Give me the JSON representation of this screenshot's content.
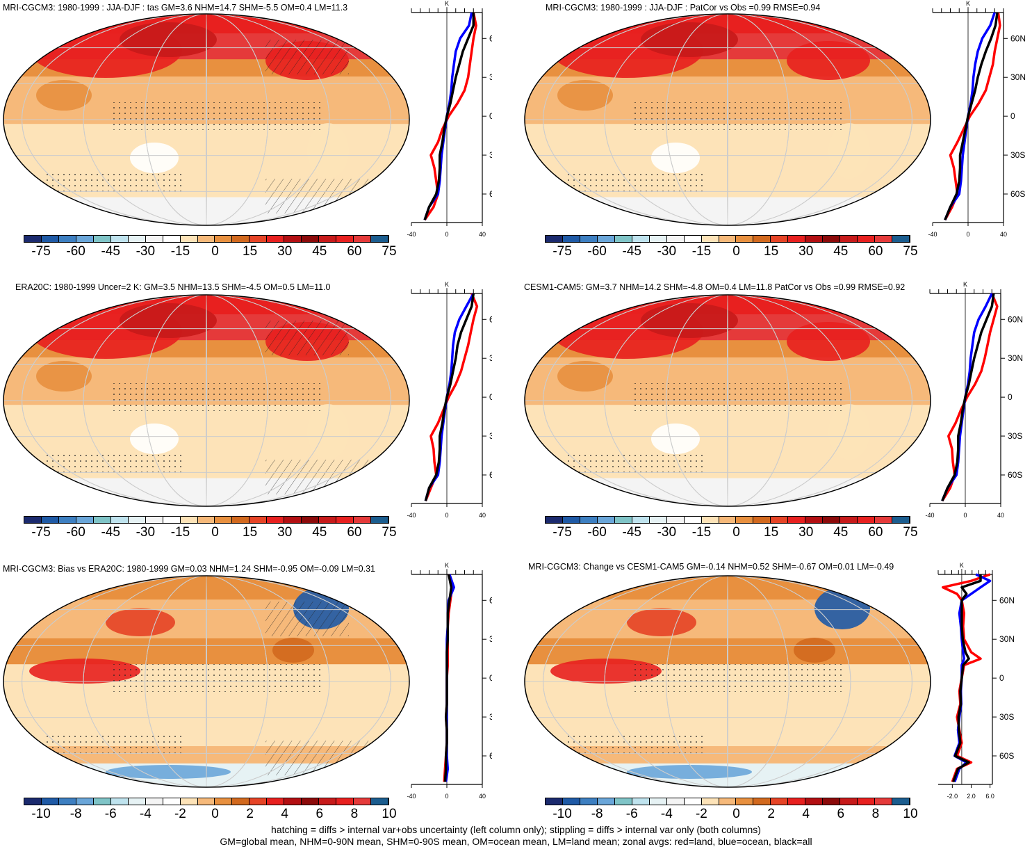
{
  "panels": [
    {
      "title": "MRI-CGCM3: 1980-1999 : JJA-DJF : tas GM=3.6 NHM=14.7 SHM=-5.5 OM=0.4 LM=11.3",
      "kind": "abs",
      "hatch": true,
      "cbar": "abs"
    },
    {
      "title": "MRI-CGCM3: 1980-1999 : JJA-DJF : PatCor vs Obs =0.99 RMSE=0.94",
      "kind": "abs",
      "hatch": false,
      "cbar": "abs"
    },
    {
      "title": "ERA20C: 1980-1999 Uncer=2 K: GM=3.5 NHM=13.5 SHM=-4.5 OM=0.5 LM=11.0",
      "kind": "abs",
      "hatch": true,
      "cbar": "abs"
    },
    {
      "title": "CESM1-CAM5: GM=3.7 NHM=14.2 SHM=-4.8 OM=0.4 LM=11.8 PatCor vs Obs =0.99 RMSE=0.92",
      "kind": "abs",
      "hatch": false,
      "cbar": "abs"
    },
    {
      "title": "MRI-CGCM3: Bias vs ERA20C: 1980-1999 GM=0.03 NHM=1.24 SHM=-0.95 OM=-0.09 LM=0.31",
      "kind": "diff",
      "hatch": true,
      "cbar": "diff"
    },
    {
      "title": "MRI-CGCM3: Change vs CESM1-CAM5 GM=-0.14 NHM=0.52 SHM=-0.67 OM=0.01 LM=-0.49",
      "kind": "diff",
      "hatch": false,
      "cbar": "diff"
    }
  ],
  "colorbars": {
    "abs": {
      "labels": [
        "-75",
        "-60",
        "-45",
        "-30",
        "-15",
        "0",
        "15",
        "30",
        "45",
        "60",
        "75"
      ]
    },
    "diff": {
      "labels": [
        "-10",
        "-8",
        "-6",
        "-4",
        "-2",
        "0",
        "2",
        "4",
        "6",
        "8",
        "10"
      ]
    }
  },
  "palette": [
    "#1b2a6e",
    "#1f5aa6",
    "#3d7fc1",
    "#6aa6d9",
    "#7fc4c7",
    "#bfe3ee",
    "#e6f2f4",
    "#f4f4f4",
    "#ffffff",
    "#fde3b8",
    "#f6b97a",
    "#e8903f",
    "#d2691e",
    "#e64426",
    "#e8201f",
    "#b30f12",
    "#8c0a0a",
    "#c71a1a",
    "#e8201f",
    "#e53a3a",
    "#1b5d8f"
  ],
  "zonal": {
    "lat_labels": [
      "60N",
      "30N",
      "0",
      "30S",
      "60S"
    ],
    "unit": "K",
    "abs_x_ticks": [
      "-40",
      "0",
      "40"
    ],
    "bias_x_ticks": [
      "-40",
      "0",
      "40"
    ],
    "change_x_ticks": [
      "-2.0",
      "2.0",
      "6.0"
    ],
    "legend": {
      "land": "#ff0000",
      "ocean": "#0000ff",
      "all": "#000000"
    }
  },
  "chart_data": [
    {
      "type": "line",
      "panel": "MRI-CGCM3 JJA-DJF tas zonal",
      "xlim": [
        -40,
        40
      ],
      "ylim": [
        -90,
        90
      ],
      "series": [
        {
          "name": "red=land",
          "lat": [
            80,
            70,
            60,
            50,
            40,
            30,
            20,
            10,
            0,
            -10,
            -20,
            -30,
            -40,
            -50,
            -60,
            -70,
            -80
          ],
          "values": [
            30,
            33,
            30,
            28,
            26,
            24,
            20,
            12,
            2,
            -5,
            -10,
            -18,
            -14,
            -12,
            -10,
            -15,
            -25
          ]
        },
        {
          "name": "blue=ocean",
          "lat": [
            80,
            70,
            60,
            50,
            40,
            30,
            20,
            10,
            0,
            -10,
            -20,
            -30,
            -40,
            -50,
            -60,
            -70,
            -80
          ],
          "values": [
            28,
            25,
            15,
            10,
            8,
            6,
            5,
            3,
            0,
            -2,
            -4,
            -6,
            -7,
            -8,
            -10,
            -20,
            -25
          ]
        },
        {
          "name": "black=all",
          "lat": [
            80,
            70,
            60,
            50,
            40,
            30,
            20,
            10,
            0,
            -10,
            -20,
            -30,
            -40,
            -50,
            -60,
            -70,
            -80
          ],
          "values": [
            30,
            30,
            24,
            18,
            14,
            10,
            7,
            4,
            0,
            -3,
            -5,
            -8,
            -8,
            -9,
            -12,
            -20,
            -25
          ]
        }
      ]
    },
    {
      "type": "line",
      "panel": "MRI-CGCM3 PatCor zonal",
      "xlim": [
        -40,
        40
      ],
      "ylim": [
        -90,
        90
      ],
      "series": [
        {
          "name": "red=land",
          "lat": [
            80,
            70,
            60,
            50,
            40,
            30,
            20,
            10,
            0,
            -10,
            -20,
            -30,
            -40,
            -50,
            -60,
            -70,
            -80
          ],
          "values": [
            34,
            36,
            33,
            30,
            28,
            24,
            20,
            12,
            2,
            -5,
            -12,
            -20,
            -16,
            -14,
            -12,
            -18,
            -26
          ]
        },
        {
          "name": "blue=ocean",
          "lat": [
            80,
            70,
            60,
            50,
            40,
            30,
            20,
            10,
            0,
            -10,
            -20,
            -30,
            -40,
            -50,
            -60,
            -70,
            -80
          ],
          "values": [
            30,
            25,
            16,
            11,
            8,
            6,
            5,
            3,
            0,
            -2,
            -4,
            -6,
            -7,
            -8,
            -10,
            -20,
            -26
          ]
        },
        {
          "name": "black=all",
          "lat": [
            80,
            70,
            60,
            50,
            40,
            30,
            20,
            10,
            0,
            -10,
            -20,
            -30,
            -40,
            -50,
            -60,
            -70,
            -80
          ],
          "values": [
            33,
            31,
            26,
            20,
            15,
            11,
            8,
            4,
            0,
            -3,
            -6,
            -9,
            -9,
            -10,
            -13,
            -20,
            -26
          ]
        }
      ]
    },
    {
      "type": "line",
      "panel": "ERA20C zonal",
      "xlim": [
        -40,
        40
      ],
      "ylim": [
        -90,
        90
      ],
      "series": [
        {
          "name": "red=land",
          "lat": [
            80,
            70,
            60,
            50,
            40,
            30,
            20,
            10,
            0,
            -10,
            -20,
            -30,
            -40,
            -50,
            -60,
            -70,
            -80
          ],
          "values": [
            28,
            34,
            30,
            27,
            24,
            20,
            16,
            10,
            2,
            -4,
            -10,
            -18,
            -15,
            -14,
            -12,
            -18,
            -24
          ]
        },
        {
          "name": "blue=ocean",
          "lat": [
            80,
            70,
            60,
            50,
            40,
            30,
            20,
            10,
            0,
            -10,
            -20,
            -30,
            -40,
            -50,
            -60,
            -70,
            -80
          ],
          "values": [
            30,
            22,
            14,
            9,
            7,
            6,
            5,
            3,
            0,
            -2,
            -4,
            -6,
            -7,
            -8,
            -10,
            -20,
            -24
          ]
        },
        {
          "name": "black=all",
          "lat": [
            80,
            70,
            60,
            50,
            40,
            30,
            20,
            10,
            0,
            -10,
            -20,
            -30,
            -40,
            -50,
            -60,
            -70,
            -80
          ],
          "values": [
            30,
            28,
            22,
            16,
            12,
            10,
            7,
            4,
            0,
            -3,
            -5,
            -8,
            -8,
            -9,
            -12,
            -20,
            -24
          ]
        }
      ]
    },
    {
      "type": "line",
      "panel": "CESM1-CAM5 zonal",
      "xlim": [
        -40,
        40
      ],
      "ylim": [
        -90,
        90
      ],
      "series": [
        {
          "name": "red=land",
          "lat": [
            80,
            70,
            60,
            50,
            40,
            30,
            20,
            10,
            0,
            -10,
            -20,
            -30,
            -40,
            -50,
            -60,
            -70,
            -80
          ],
          "values": [
            30,
            36,
            32,
            28,
            25,
            22,
            18,
            11,
            2,
            -5,
            -11,
            -19,
            -15,
            -14,
            -12,
            -17,
            -26
          ]
        },
        {
          "name": "blue=ocean",
          "lat": [
            80,
            70,
            60,
            50,
            40,
            30,
            20,
            10,
            0,
            -10,
            -20,
            -30,
            -40,
            -50,
            -60,
            -70,
            -80
          ],
          "values": [
            30,
            23,
            15,
            10,
            8,
            6,
            5,
            3,
            0,
            -2,
            -4,
            -6,
            -7,
            -8,
            -10,
            -20,
            -26
          ]
        },
        {
          "name": "black=all",
          "lat": [
            80,
            70,
            60,
            50,
            40,
            30,
            20,
            10,
            0,
            -10,
            -20,
            -30,
            -40,
            -50,
            -60,
            -70,
            -80
          ],
          "values": [
            32,
            30,
            24,
            18,
            14,
            10,
            7,
            4,
            0,
            -3,
            -5,
            -8,
            -8,
            -9,
            -12,
            -20,
            -26
          ]
        }
      ]
    },
    {
      "type": "line",
      "panel": "MRI-CGCM3 bias vs ERA20C zonal",
      "xlim": [
        -40,
        40
      ],
      "ylim": [
        -90,
        90
      ],
      "series": [
        {
          "name": "red=land",
          "lat": [
            80,
            70,
            60,
            50,
            40,
            30,
            20,
            10,
            0,
            -10,
            -20,
            -30,
            -40,
            -50,
            -60,
            -70,
            -80
          ],
          "values": [
            2,
            6,
            4,
            2,
            1,
            1,
            1,
            1,
            0,
            0,
            0,
            -1,
            0,
            0,
            -1,
            -2,
            -3
          ]
        },
        {
          "name": "blue=ocean",
          "lat": [
            80,
            70,
            60,
            50,
            40,
            30,
            20,
            10,
            0,
            -10,
            -20,
            -30,
            -40,
            -50,
            -60,
            -70,
            -80
          ],
          "values": [
            3,
            8,
            2,
            1,
            1,
            0,
            0,
            0,
            0,
            0,
            0,
            0,
            0,
            0,
            0,
            1,
            -1
          ]
        },
        {
          "name": "black=all",
          "lat": [
            80,
            70,
            60,
            50,
            40,
            30,
            20,
            10,
            0,
            -10,
            -20,
            -30,
            -40,
            -50,
            -60,
            -70,
            -80
          ],
          "values": [
            2,
            5,
            3,
            1,
            1,
            1,
            0,
            0,
            0,
            0,
            0,
            -1,
            0,
            0,
            -1,
            -1,
            -2
          ]
        }
      ]
    },
    {
      "type": "line",
      "panel": "MRI-CGCM3 change vs CESM1-CAM5 zonal",
      "xlim": [
        -5,
        6.5
      ],
      "ylim": [
        -90,
        90
      ],
      "series": [
        {
          "name": "red=land",
          "lat": [
            80,
            75,
            70,
            65,
            60,
            50,
            40,
            30,
            20,
            15,
            10,
            0,
            -10,
            -20,
            -30,
            -40,
            -50,
            -60,
            -65,
            -70,
            -80
          ],
          "values": [
            6,
            2,
            -4,
            -1,
            0,
            0.5,
            0.3,
            0.5,
            2,
            4,
            0.5,
            0,
            -0.5,
            -0.3,
            -1,
            -0.5,
            0,
            -1,
            2,
            -1,
            -2
          ]
        },
        {
          "name": "blue=ocean",
          "lat": [
            80,
            75,
            70,
            65,
            60,
            50,
            40,
            30,
            20,
            15,
            10,
            0,
            -10,
            -20,
            -30,
            -40,
            -50,
            -60,
            -65,
            -70,
            -80
          ],
          "values": [
            3,
            6,
            4,
            2,
            0,
            -0.5,
            -0.2,
            0,
            0.3,
            0.5,
            0,
            0,
            -0.2,
            -0.1,
            -0.5,
            -0.8,
            -0.5,
            -1.5,
            1,
            -0.5,
            -1.5
          ]
        },
        {
          "name": "black=all",
          "lat": [
            80,
            75,
            70,
            65,
            60,
            50,
            40,
            30,
            20,
            15,
            10,
            0,
            -10,
            -20,
            -30,
            -40,
            -50,
            -60,
            -65,
            -70,
            -80
          ],
          "values": [
            4,
            4,
            0,
            1,
            0,
            0,
            0,
            0.2,
            0.8,
            1.5,
            0.3,
            0,
            -0.3,
            -0.2,
            -0.7,
            -0.6,
            -0.3,
            -1.4,
            1.5,
            -0.8,
            -1.8
          ]
        }
      ]
    }
  ],
  "footer": {
    "line1": "hatching = diffs > internal var+obs uncertainty (left column only); stippling = diffs > internal var only (both columns)",
    "line2": "GM=global mean, NHM=0-90N mean, SHM=0-90S mean, OM=ocean mean, LM=land mean; zonal avgs: red=land, blue=ocean, black=all"
  }
}
